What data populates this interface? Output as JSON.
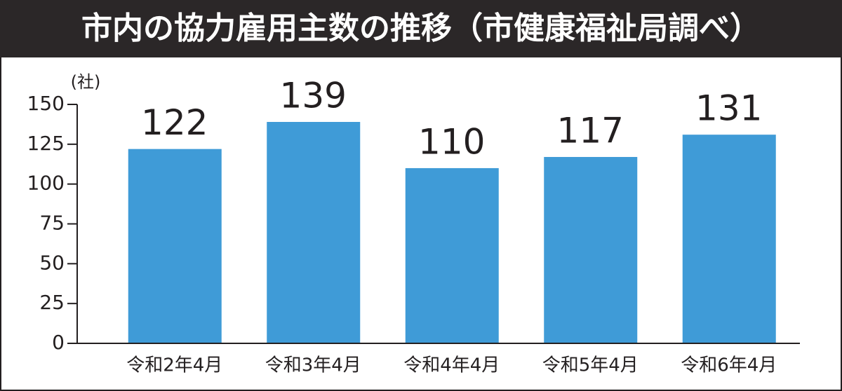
{
  "chart_data": {
    "type": "bar",
    "title": "市内の協力雇用主数の推移（市健康福祉局調べ）",
    "y_label": "(社)",
    "categories": [
      "令和2年4月",
      "令和3年4月",
      "令和4年4月",
      "令和5年4月",
      "令和6年4月"
    ],
    "values": [
      122,
      139,
      110,
      117,
      131
    ],
    "color": "#3f9bd7",
    "ylim": [
      0,
      150
    ],
    "yticks": [
      0,
      25,
      50,
      75,
      100,
      125,
      150
    ]
  }
}
